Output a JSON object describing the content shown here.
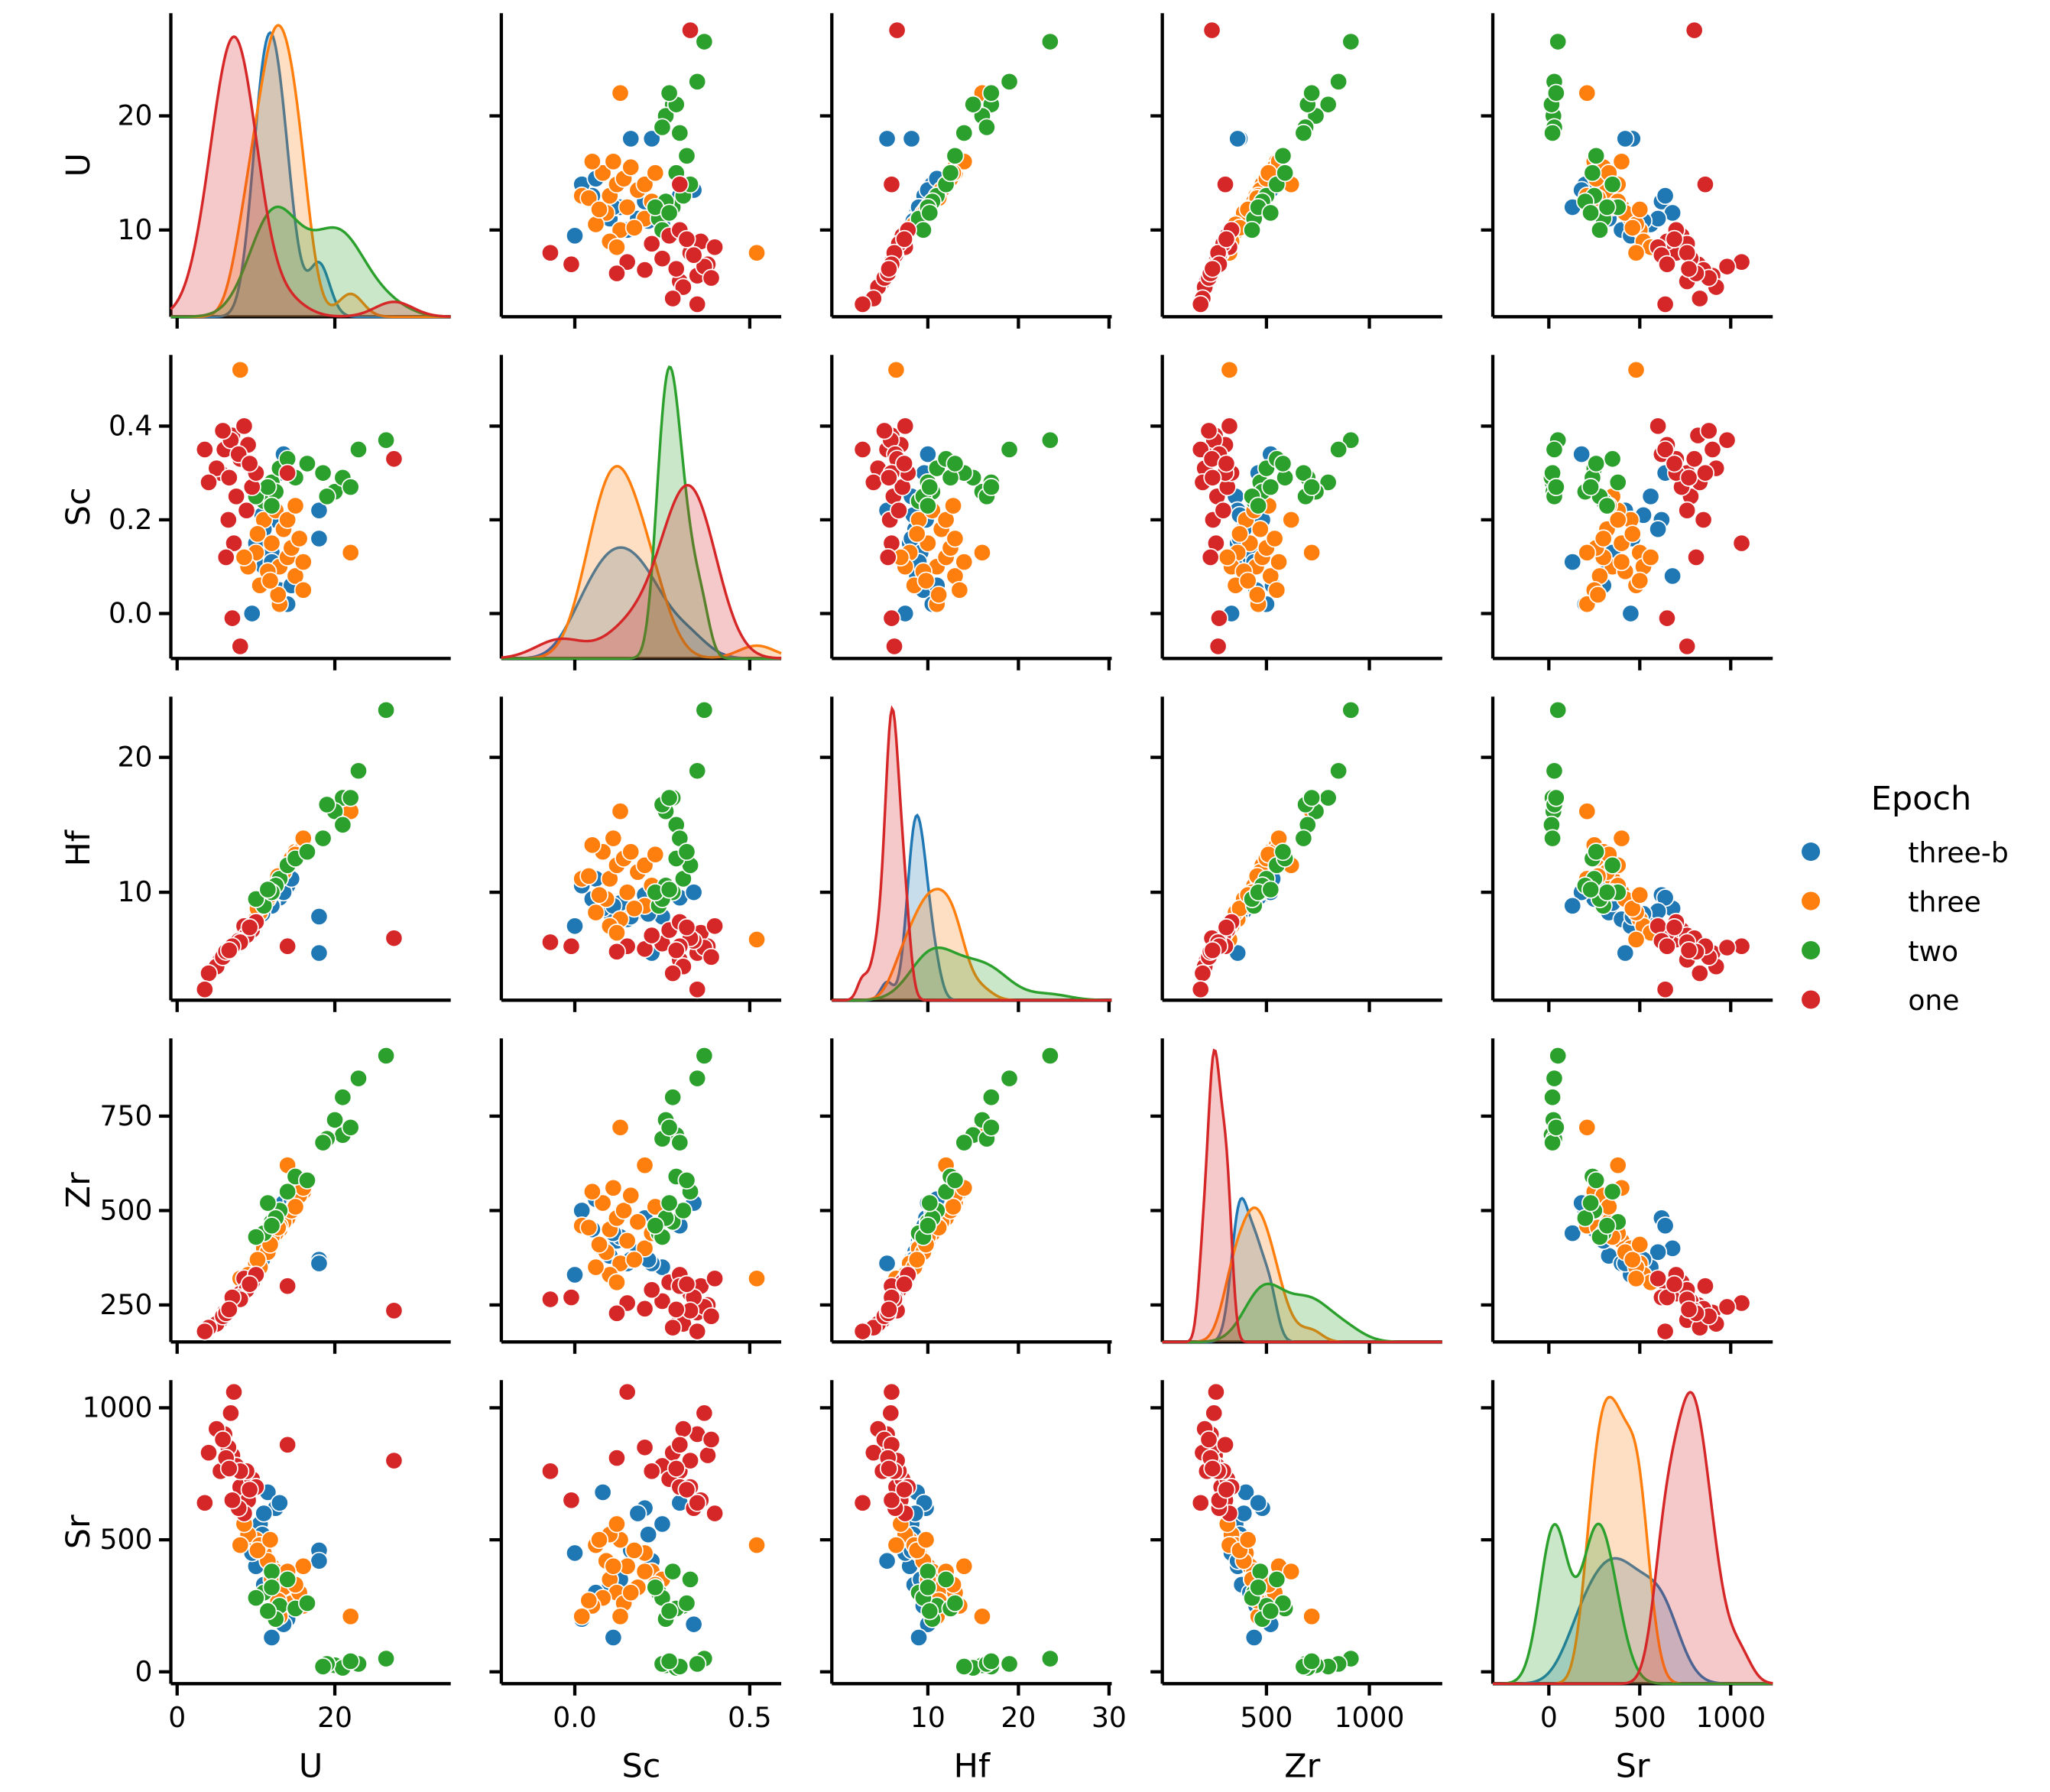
{
  "chart_data": {
    "type": "pairplot",
    "legend_title": "Epoch",
    "axes": [
      {
        "name": "U",
        "xlim": [
          -0.8,
          34.7
        ],
        "xticks": [
          0,
          20
        ],
        "ylim": [
          2.4,
          29
        ],
        "yticks": [
          10,
          20
        ]
      },
      {
        "name": "Sc",
        "xlim": [
          -0.21,
          0.59
        ],
        "xticks": [
          {
            "value": 0,
            "label": "0.0"
          },
          {
            "value": 0.5,
            "label": "0.5"
          }
        ],
        "ylim": [
          -0.096,
          0.552
        ],
        "yticks": [
          {
            "value": 0,
            "label": "0.0"
          },
          {
            "value": 0.2,
            "label": "0.2"
          },
          {
            "value": 0.4,
            "label": "0.4"
          }
        ]
      },
      {
        "name": "Hf",
        "xlim": [
          -0.6,
          30.3
        ],
        "xticks": [
          10,
          20,
          30
        ],
        "ylim": [
          2.0,
          24.5
        ],
        "yticks": [
          10,
          20
        ]
      },
      {
        "name": "Zr",
        "xlim": [
          -6,
          1354
        ],
        "xticks": [
          500,
          1000
        ],
        "ylim": [
          152,
          956
        ],
        "yticks": [
          250,
          500,
          750
        ]
      },
      {
        "name": "Sr",
        "xlim": [
          -308,
          1231
        ],
        "xticks": [
          0,
          500,
          1000
        ],
        "ylim": [
          -45,
          1105
        ],
        "yticks": [
          0,
          500,
          1000
        ]
      }
    ],
    "series": [
      {
        "name": "three-b",
        "color": "#1f77b4",
        "rows": [
          [
            11,
            0.1,
            8.5,
            380,
            330
          ],
          [
            12,
            0.12,
            9.0,
            420,
            300
          ],
          [
            13,
            0.05,
            9.5,
            450,
            250
          ],
          [
            10,
            0.15,
            8.0,
            360,
            400
          ],
          [
            12.5,
            0.2,
            9.8,
            480,
            620
          ],
          [
            11.5,
            0.08,
            8.8,
            400,
            680
          ],
          [
            14,
            0.02,
            10.5,
            500,
            200
          ],
          [
            10.5,
            0.25,
            8.2,
            350,
            560
          ],
          [
            13,
            0.3,
            9.6,
            460,
            640
          ],
          [
            12,
            0.13,
            9.2,
            430,
            350
          ],
          [
            9.5,
            0.0,
            7.5,
            330,
            450
          ],
          [
            11,
            0.18,
            8.6,
            390,
            600
          ],
          [
            18,
            0.16,
            8.2,
            370,
            460
          ],
          [
            18,
            0.22,
            5.5,
            360,
            420
          ],
          [
            13.5,
            0.34,
            10,
            520,
            180
          ],
          [
            12,
            0.11,
            9.0,
            440,
            130
          ],
          [
            10.8,
            0.21,
            8.4,
            370,
            520
          ],
          [
            14.5,
            0.06,
            11.0,
            530,
            300
          ]
        ]
      },
      {
        "name": "three",
        "color": "#ff7f0e",
        "rows": [
          [
            13,
            0.1,
            11,
            450,
            350
          ],
          [
            14,
            0.12,
            12,
            480,
            300
          ],
          [
            12,
            0.15,
            10,
            420,
            400
          ],
          [
            15,
            0.08,
            13,
            520,
            280
          ],
          [
            11,
            0.2,
            9,
            400,
            450
          ],
          [
            10,
            0.13,
            8,
            360,
            500
          ],
          [
            16,
            0.05,
            13.5,
            550,
            250
          ],
          [
            13.5,
            0.18,
            11.5,
            470,
            320
          ],
          [
            12.5,
            0.22,
            10.5,
            440,
            380
          ],
          [
            9,
            0.1,
            7.5,
            330,
            520
          ],
          [
            14.5,
            0.14,
            12.5,
            500,
            260
          ],
          [
            11.5,
            0.09,
            9.5,
            390,
            420
          ],
          [
            15.5,
            0.16,
            13,
            540,
            300
          ],
          [
            10.5,
            0.06,
            8.5,
            350,
            480
          ],
          [
            13,
            0.02,
            11,
            460,
            210
          ],
          [
            12,
            0.25,
            10,
            430,
            350
          ],
          [
            16,
            0.11,
            14,
            560,
            400
          ],
          [
            8.5,
            0.12,
            7,
            310,
            560
          ],
          [
            22,
            0.13,
            16,
            720,
            210
          ],
          [
            8,
            0.52,
            6.5,
            320,
            480
          ],
          [
            14,
            0.2,
            12,
            620,
            380
          ],
          [
            12.8,
            0.04,
            11.2,
            455,
            270
          ],
          [
            10.2,
            0.17,
            8.8,
            370,
            460
          ],
          [
            15,
            0.23,
            12.8,
            510,
            330
          ],
          [
            11.8,
            0.07,
            9.8,
            410,
            500
          ]
        ]
      },
      {
        "name": "two",
        "color": "#2ca02c",
        "rows": [
          [
            26.5,
            0.37,
            23.5,
            910,
            50
          ],
          [
            23,
            0.35,
            19,
            850,
            30
          ],
          [
            21,
            0.28,
            17,
            800,
            20
          ],
          [
            20,
            0.26,
            16,
            740,
            25
          ],
          [
            21,
            0.29,
            15,
            700,
            15
          ],
          [
            19,
            0.25,
            16.5,
            690,
            30
          ],
          [
            18.5,
            0.3,
            14,
            680,
            20
          ],
          [
            22,
            0.27,
            17,
            720,
            40
          ],
          [
            12,
            0.28,
            10,
            470,
            380
          ],
          [
            11,
            0.24,
            9,
            440,
            300
          ],
          [
            13,
            0.31,
            11,
            500,
            250
          ],
          [
            12.5,
            0.26,
            10.5,
            480,
            200
          ],
          [
            14,
            0.33,
            12,
            550,
            350
          ],
          [
            10,
            0.25,
            9.5,
            430,
            280
          ],
          [
            12,
            0.23,
            10,
            460,
            320
          ],
          [
            15,
            0.29,
            12.5,
            590,
            240
          ],
          [
            16.5,
            0.32,
            13,
            580,
            260
          ],
          [
            11.5,
            0.27,
            10.2,
            520,
            230
          ]
        ]
      },
      {
        "name": "one",
        "color": "#d62728",
        "rows": [
          [
            7.0,
            0.38,
            6.0,
            250,
            820
          ],
          [
            6.0,
            0.35,
            5.5,
            230,
            900
          ],
          [
            5.5,
            0.3,
            5.0,
            210,
            760
          ],
          [
            8.0,
            0.33,
            6.5,
            280,
            700
          ],
          [
            9.0,
            0.36,
            7.0,
            300,
            650
          ],
          [
            7.5,
            0.25,
            6.2,
            260,
            780
          ],
          [
            6.5,
            0.2,
            5.8,
            240,
            850
          ],
          [
            8.5,
            0.4,
            7.5,
            320,
            600
          ],
          [
            5.0,
            0.31,
            4.5,
            200,
            920
          ],
          [
            4.0,
            0.28,
            4.0,
            190,
            830
          ],
          [
            9.5,
            0.27,
            7.2,
            310,
            730
          ],
          [
            7.2,
            0.15,
            6.0,
            255,
            1060
          ],
          [
            6.8,
            0.37,
            5.9,
            245,
            980
          ],
          [
            10.0,
            0.3,
            7.8,
            330,
            700
          ],
          [
            8.8,
            0.22,
            6.8,
            290,
            760
          ],
          [
            5.8,
            0.39,
            5.2,
            220,
            880
          ],
          [
            7.8,
            0.34,
            6.4,
            270,
            620
          ],
          [
            3.5,
            0.35,
            2.8,
            180,
            640
          ],
          [
            27.5,
            0.33,
            6.6,
            235,
            800
          ],
          [
            14.0,
            0.3,
            6.0,
            300,
            860
          ],
          [
            8.0,
            -0.07,
            6.3,
            265,
            760
          ],
          [
            7.0,
            -0.01,
            6.0,
            270,
            650
          ],
          [
            6.2,
            0.12,
            5.6,
            228,
            810
          ],
          [
            9.2,
            0.32,
            7.4,
            305,
            690
          ],
          [
            6.6,
            0.29,
            5.7,
            238,
            770
          ]
        ]
      }
    ]
  }
}
